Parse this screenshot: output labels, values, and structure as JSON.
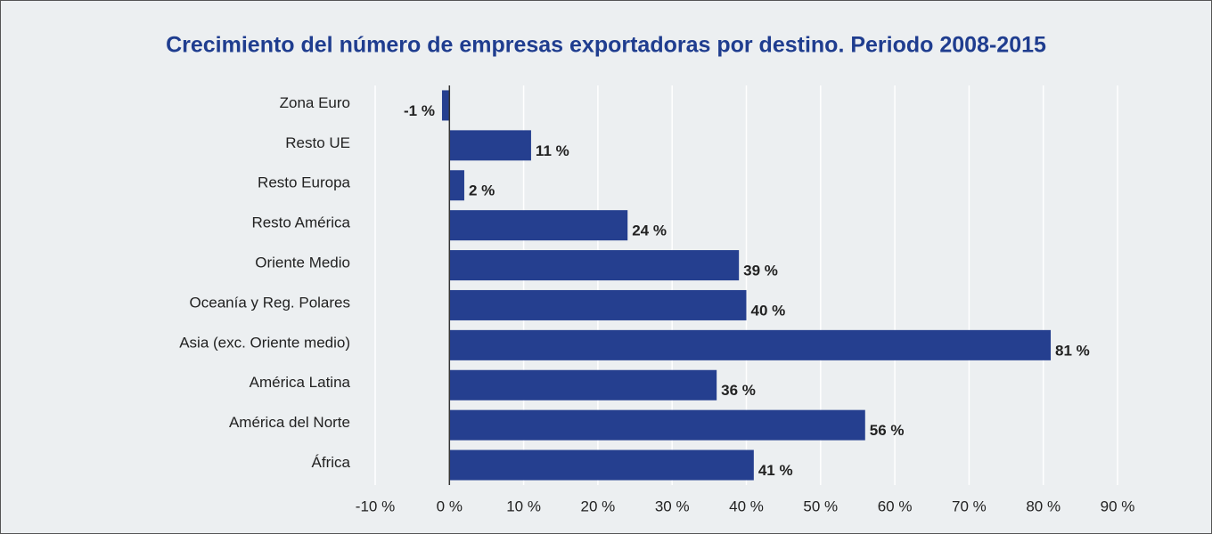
{
  "chart_data": {
    "type": "bar",
    "orientation": "horizontal",
    "title": "Crecimiento del número de empresas exportadoras por destino. Periodo 2008-2015",
    "categories": [
      "Zona Euro",
      "Resto UE",
      "Resto Europa",
      "Resto América",
      "Oriente Medio",
      "Oceanía y Reg. Polares",
      "Asia (exc. Oriente medio)",
      "América Latina",
      "América del Norte",
      "África"
    ],
    "values": [
      -1,
      11,
      2,
      24,
      39,
      40,
      81,
      36,
      56,
      41
    ],
    "value_labels": [
      "-1 %",
      "11 %",
      "2 %",
      "24 %",
      "39 %",
      "40 %",
      "81 %",
      "36 %",
      "56 %",
      "41 %"
    ],
    "color": "#253f8f",
    "xlim": [
      -10,
      90
    ],
    "xticks": [
      {
        "value": -10,
        "label": "-10 %"
      },
      {
        "value": 0,
        "label": "0 %"
      },
      {
        "value": 10,
        "label": "10 %"
      },
      {
        "value": 20,
        "label": "20 %"
      },
      {
        "value": 30,
        "label": "30 %"
      },
      {
        "value": 40,
        "label": "40 %"
      },
      {
        "value": 50,
        "label": "50 %"
      },
      {
        "value": 60,
        "label": "60 %"
      },
      {
        "value": 70,
        "label": "70 %"
      },
      {
        "value": 80,
        "label": "80 %"
      },
      {
        "value": 90,
        "label": "90 %"
      }
    ],
    "grid": true
  }
}
